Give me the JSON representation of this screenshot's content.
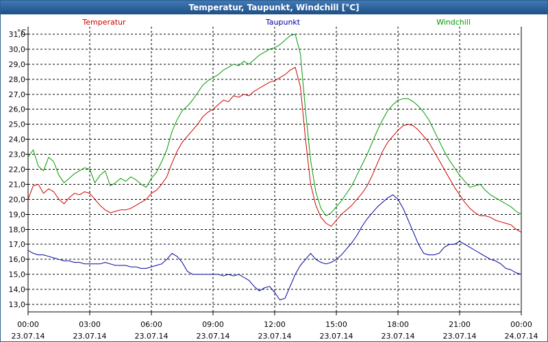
{
  "window": {
    "title": "Temperatur, Taupunkt, Windchill [°C]"
  },
  "colors": {
    "temperatur": "#cc0000",
    "taupunkt": "#000099",
    "windchill": "#009900",
    "grid": "#000000",
    "axis": "#000000"
  },
  "chart_data": {
    "type": "line",
    "title": "Temperatur, Taupunkt, Windchill [°C]",
    "xlabel": "",
    "ylabel": "°C",
    "ylim": [
      12.5,
      31.5
    ],
    "xlim": [
      0,
      24
    ],
    "y_ticks": [
      13,
      14,
      15,
      16,
      17,
      18,
      19,
      20,
      21,
      22,
      23,
      24,
      25,
      26,
      27,
      28,
      29,
      30,
      31
    ],
    "y_tick_labels": [
      "13,0",
      "14,0",
      "15,0",
      "16,0",
      "17,0",
      "18,0",
      "19,0",
      "20,0",
      "21,0",
      "22,0",
      "23,0",
      "24,0",
      "25,0",
      "26,0",
      "27,0",
      "28,0",
      "29,0",
      "30,0",
      "31,0"
    ],
    "x_ticks": [
      {
        "x": 0,
        "time": "00:00",
        "date": "23.07.14"
      },
      {
        "x": 3,
        "time": "03:00",
        "date": "23.07.14"
      },
      {
        "x": 6,
        "time": "06:00",
        "date": "23.07.14"
      },
      {
        "x": 9,
        "time": "09:00",
        "date": "23.07.14"
      },
      {
        "x": 12,
        "time": "12:00",
        "date": "23.07.14"
      },
      {
        "x": 15,
        "time": "15:00",
        "date": "23.07.14"
      },
      {
        "x": 18,
        "time": "18:00",
        "date": "23.07.14"
      },
      {
        "x": 21,
        "time": "21:00",
        "date": "23.07.14"
      },
      {
        "x": 24,
        "time": "00:00",
        "date": "24.07.14"
      }
    ],
    "legend_position": "top",
    "grid": true,
    "series": [
      {
        "name": "Temperatur",
        "color": "#cc0000",
        "x": [
          0,
          0.25,
          0.5,
          0.75,
          1,
          1.25,
          1.5,
          1.75,
          2,
          2.25,
          2.5,
          2.75,
          3,
          3.25,
          3.5,
          3.75,
          4,
          4.25,
          4.5,
          4.75,
          5,
          5.25,
          5.5,
          5.75,
          6,
          6.25,
          6.5,
          6.75,
          7,
          7.25,
          7.5,
          7.75,
          8,
          8.25,
          8.5,
          8.75,
          9,
          9.25,
          9.5,
          9.75,
          10,
          10.25,
          10.5,
          10.75,
          11,
          11.25,
          11.5,
          11.75,
          12,
          12.25,
          12.5,
          12.75,
          13,
          13.25,
          13.5,
          13.75,
          14,
          14.25,
          14.5,
          14.75,
          15,
          15.25,
          15.5,
          15.75,
          16,
          16.25,
          16.5,
          16.75,
          17,
          17.25,
          17.5,
          17.75,
          18,
          18.25,
          18.5,
          18.75,
          19,
          19.25,
          19.5,
          19.75,
          20,
          20.25,
          20.5,
          20.75,
          21,
          21.25,
          21.5,
          21.75,
          22,
          22.25,
          22.5,
          22.75,
          23,
          23.25,
          23.5,
          23.75,
          24
        ],
        "values": [
          20.0,
          20.9,
          21.0,
          20.4,
          20.7,
          20.5,
          20.0,
          19.7,
          20.1,
          20.4,
          20.3,
          20.5,
          20.4,
          20.0,
          19.6,
          19.3,
          19.1,
          19.2,
          19.3,
          19.3,
          19.4,
          19.6,
          19.8,
          20.0,
          20.4,
          20.6,
          21.0,
          21.5,
          22.4,
          23.2,
          23.8,
          24.2,
          24.6,
          25.0,
          25.5,
          25.8,
          26.0,
          26.3,
          26.6,
          26.5,
          26.9,
          26.8,
          27.0,
          26.9,
          27.2,
          27.4,
          27.6,
          27.8,
          27.9,
          28.1,
          28.3,
          28.6,
          28.8,
          27.5,
          24.0,
          21.0,
          19.6,
          18.8,
          18.4,
          18.2,
          18.6,
          19.0,
          19.3,
          19.6,
          20.0,
          20.4,
          20.9,
          21.6,
          22.4,
          23.2,
          23.8,
          24.2,
          24.6,
          24.9,
          25.0,
          24.9,
          24.6,
          24.2,
          23.8,
          23.2,
          22.6,
          22.0,
          21.4,
          20.8,
          20.3,
          19.8,
          19.4,
          19.1,
          18.9,
          18.9,
          18.8,
          18.6,
          18.5,
          18.4,
          18.3,
          18.0,
          17.8
        ],
        "label_x": 3.7
      },
      {
        "name": "Taupunkt",
        "color": "#000099",
        "x": [
          0,
          0.25,
          0.5,
          0.75,
          1,
          1.25,
          1.5,
          1.75,
          2,
          2.25,
          2.5,
          2.75,
          3,
          3.25,
          3.5,
          3.75,
          4,
          4.25,
          4.5,
          4.75,
          5,
          5.25,
          5.5,
          5.75,
          6,
          6.25,
          6.5,
          6.75,
          7,
          7.25,
          7.5,
          7.75,
          8,
          8.25,
          8.5,
          8.75,
          9,
          9.25,
          9.5,
          9.75,
          10,
          10.25,
          10.5,
          10.75,
          11,
          11.25,
          11.5,
          11.75,
          12,
          12.25,
          12.5,
          12.75,
          13,
          13.25,
          13.5,
          13.75,
          14,
          14.25,
          14.5,
          14.75,
          15,
          15.25,
          15.5,
          15.75,
          16,
          16.25,
          16.5,
          16.75,
          17,
          17.25,
          17.5,
          17.75,
          18,
          18.25,
          18.5,
          18.75,
          19,
          19.25,
          19.5,
          19.75,
          20,
          20.25,
          20.5,
          20.75,
          21,
          21.25,
          21.5,
          21.75,
          22,
          22.25,
          22.5,
          22.75,
          23,
          23.25,
          23.5,
          23.75,
          24
        ],
        "values": [
          16.6,
          16.4,
          16.3,
          16.3,
          16.2,
          16.1,
          16.0,
          15.9,
          15.9,
          15.8,
          15.8,
          15.7,
          15.7,
          15.7,
          15.7,
          15.8,
          15.7,
          15.6,
          15.6,
          15.6,
          15.5,
          15.5,
          15.4,
          15.4,
          15.5,
          15.6,
          15.7,
          16.0,
          16.4,
          16.2,
          15.8,
          15.2,
          15.0,
          15.0,
          15.0,
          15.0,
          15.0,
          15.0,
          14.9,
          15.0,
          14.9,
          15.0,
          14.8,
          14.6,
          14.2,
          13.9,
          14.1,
          14.2,
          13.8,
          13.3,
          13.4,
          14.2,
          15.0,
          15.6,
          16.0,
          16.4,
          16.0,
          15.8,
          15.7,
          15.8,
          16.0,
          16.3,
          16.7,
          17.1,
          17.6,
          18.2,
          18.7,
          19.1,
          19.5,
          19.8,
          20.1,
          20.3,
          20.0,
          19.4,
          18.6,
          17.8,
          17.0,
          16.4,
          16.3,
          16.3,
          16.4,
          16.8,
          17.0,
          17.0,
          17.2,
          17.0,
          16.8,
          16.6,
          16.4,
          16.2,
          16.0,
          15.9,
          15.7,
          15.4,
          15.3,
          15.1,
          15.0
        ],
        "label_x": 12.4
      },
      {
        "name": "Windchill",
        "color": "#009900",
        "x": [
          0,
          0.25,
          0.5,
          0.75,
          1,
          1.25,
          1.5,
          1.75,
          2,
          2.25,
          2.5,
          2.75,
          3,
          3.25,
          3.5,
          3.75,
          4,
          4.25,
          4.5,
          4.75,
          5,
          5.25,
          5.5,
          5.75,
          6,
          6.25,
          6.5,
          6.75,
          7,
          7.25,
          7.5,
          7.75,
          8,
          8.25,
          8.5,
          8.75,
          9,
          9.25,
          9.5,
          9.75,
          10,
          10.25,
          10.5,
          10.75,
          11,
          11.25,
          11.5,
          11.75,
          12,
          12.25,
          12.5,
          12.75,
          13,
          13.25,
          13.5,
          13.75,
          14,
          14.25,
          14.5,
          14.75,
          15,
          15.25,
          15.5,
          15.75,
          16,
          16.25,
          16.5,
          16.75,
          17,
          17.25,
          17.5,
          17.75,
          18,
          18.25,
          18.5,
          18.75,
          19,
          19.25,
          19.5,
          19.75,
          20,
          20.25,
          20.5,
          20.75,
          21,
          21.25,
          21.5,
          21.75,
          22,
          22.25,
          22.5,
          22.75,
          23,
          23.25,
          23.5,
          23.75,
          24
        ],
        "values": [
          22.8,
          23.3,
          22.2,
          21.9,
          22.8,
          22.5,
          21.6,
          21.1,
          21.4,
          21.7,
          21.9,
          22.1,
          22.0,
          21.1,
          21.6,
          21.9,
          20.9,
          21.1,
          21.4,
          21.2,
          21.5,
          21.3,
          21.0,
          20.8,
          21.4,
          21.8,
          22.5,
          23.3,
          24.5,
          25.3,
          25.9,
          26.2,
          26.6,
          27.1,
          27.6,
          27.9,
          28.1,
          28.3,
          28.6,
          28.8,
          29.0,
          28.9,
          29.2,
          29.0,
          29.3,
          29.6,
          29.8,
          30.0,
          30.1,
          30.3,
          30.6,
          30.9,
          31.0,
          29.7,
          25.9,
          22.6,
          20.5,
          19.4,
          18.9,
          19.1,
          19.5,
          19.9,
          20.4,
          20.9,
          21.6,
          22.3,
          23.0,
          23.8,
          24.6,
          25.3,
          25.9,
          26.3,
          26.6,
          26.7,
          26.7,
          26.5,
          26.2,
          25.8,
          25.3,
          24.6,
          23.9,
          23.2,
          22.6,
          22.1,
          21.6,
          21.2,
          20.8,
          20.9,
          21.0,
          20.6,
          20.3,
          20.1,
          19.9,
          19.7,
          19.5,
          19.2,
          19.0
        ],
        "label_x": 20.7
      }
    ]
  }
}
